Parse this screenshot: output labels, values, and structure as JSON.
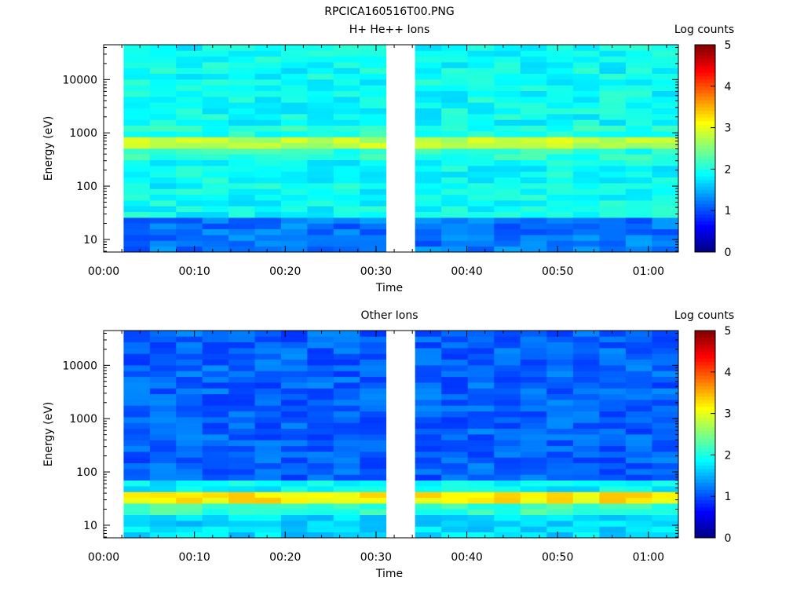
{
  "figure_title": "RPCICA160516T00.PNG",
  "chart_data": [
    {
      "type": "heatmap",
      "title": "H+ He++ Ions",
      "xlabel": "Time",
      "ylabel": "Energy (eV)",
      "colorbar_label": "Log counts",
      "x_ticks": [
        "00:00",
        "00:10",
        "00:20",
        "00:30",
        "00:40",
        "00:50",
        "01:00"
      ],
      "x_range_min": [
        0,
        63.3
      ],
      "y_ticks": [
        "10",
        "100",
        "1000",
        "10000"
      ],
      "y_range_eV": [
        5.8,
        45000
      ],
      "y_scale": "log",
      "colorbar_ticks": [
        "0",
        "1",
        "2",
        "3",
        "4",
        "5"
      ],
      "colorbar_range": [
        0,
        5
      ],
      "colormap": "jet",
      "data_segments_min": [
        [
          2.2,
          31.1
        ],
        [
          34.3,
          63.3
        ]
      ],
      "columns": 20,
      "energy_bins": 36,
      "feature": {
        "peak_band_eV": [
          550,
          800
        ],
        "peak_log_counts": 2.8,
        "low_energy_log_counts": 1.2,
        "background_log_counts": 1.9
      }
    },
    {
      "type": "heatmap",
      "title": "Other Ions",
      "xlabel": "Time",
      "ylabel": "Energy (eV)",
      "colorbar_label": "Log counts",
      "x_ticks": [
        "00:00",
        "00:10",
        "00:20",
        "00:30",
        "00:40",
        "00:50",
        "01:00"
      ],
      "x_range_min": [
        0,
        63.3
      ],
      "y_ticks": [
        "10",
        "100",
        "1000",
        "10000"
      ],
      "y_range_eV": [
        5.8,
        45000
      ],
      "y_scale": "log",
      "colorbar_ticks": [
        "0",
        "1",
        "2",
        "3",
        "4",
        "5"
      ],
      "colorbar_range": [
        0,
        5
      ],
      "colormap": "jet",
      "data_segments_min": [
        [
          2.2,
          31.1
        ],
        [
          34.3,
          63.3
        ]
      ],
      "columns": 20,
      "energy_bins": 36,
      "feature": {
        "peak_band_eV": [
          25,
          45
        ],
        "peak_log_counts": 3.2,
        "low_energy_log_counts": 1.7,
        "background_log_counts": 1.1
      }
    }
  ]
}
